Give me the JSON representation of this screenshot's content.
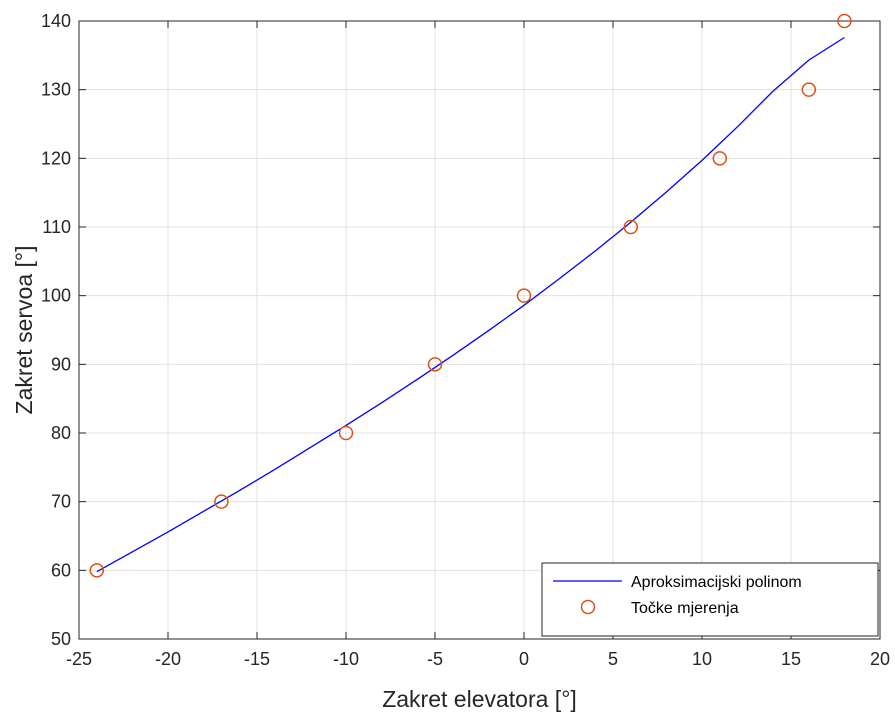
{
  "chart_data": {
    "type": "line",
    "title": "",
    "xlabel": "Zakret elevatora [°]",
    "ylabel": "Zakret servoa [°]",
    "xlim": [
      -25,
      20
    ],
    "ylim": [
      50,
      140
    ],
    "xticks": [
      -25,
      -20,
      -15,
      -10,
      -5,
      0,
      5,
      10,
      15,
      20
    ],
    "yticks": [
      50,
      60,
      70,
      80,
      90,
      100,
      110,
      120,
      130,
      140
    ],
    "grid": true,
    "legend_position": "bottom-right",
    "series": [
      {
        "name": "Aproksimacijski polinom",
        "style": "line",
        "color": "#0000ff",
        "x": [
          -24,
          -22,
          -20,
          -18,
          -16,
          -14,
          -12,
          -10,
          -8,
          -6,
          -4,
          -2,
          0,
          2,
          4,
          6,
          8,
          10,
          12,
          14,
          16,
          18
        ],
        "y": [
          59.8,
          62.7,
          65.6,
          68.6,
          71.6,
          74.7,
          77.9,
          81.1,
          84.4,
          87.8,
          91.3,
          94.9,
          98.6,
          102.5,
          106.5,
          110.7,
          115.1,
          119.7,
          124.6,
          129.8,
          134.3,
          137.6
        ]
      },
      {
        "name": "Točke mjerenja",
        "style": "markers",
        "marker": "circle",
        "color": "#d95319",
        "x": [
          -24,
          -17,
          -10,
          -5,
          0,
          6,
          11,
          16,
          18
        ],
        "y": [
          60,
          70,
          80,
          90,
          100,
          110,
          120,
          130,
          140
        ]
      }
    ]
  }
}
